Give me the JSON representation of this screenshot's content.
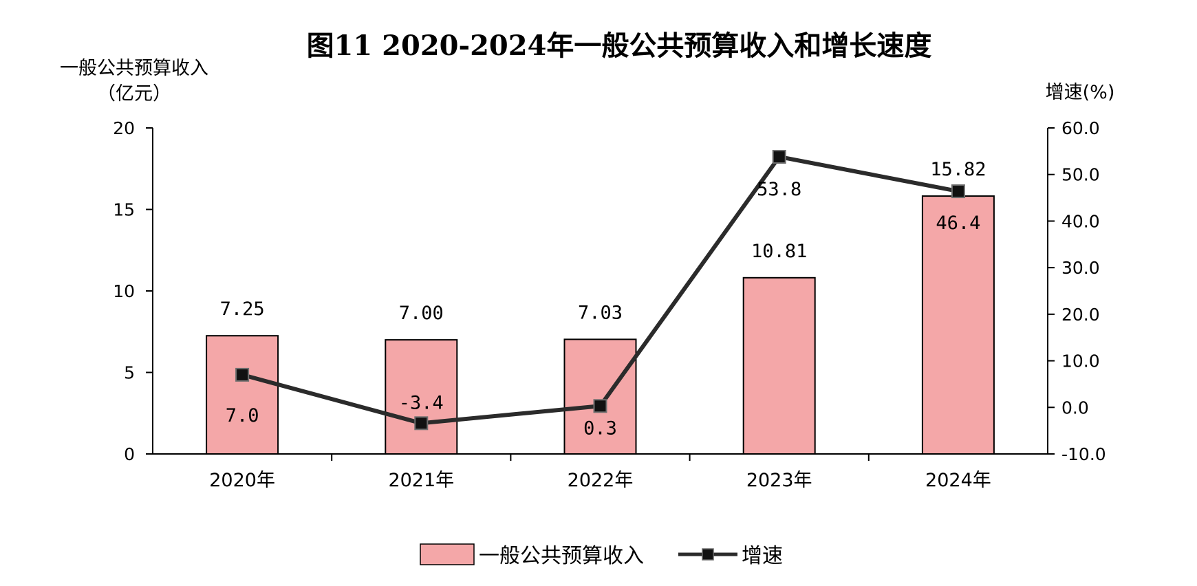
{
  "colors": {
    "bar_fill": "#F4A7A8",
    "bar_stroke": "#000000",
    "line": "#2B2B2B",
    "marker": "#111111",
    "axis": "#000000"
  },
  "chart_data": {
    "type": "bar",
    "title": "图11 2020-2024年一般公共预算收入和增长速度",
    "categories": [
      "2020年",
      "2021年",
      "2022年",
      "2023年",
      "2024年"
    ],
    "y_left": {
      "label_line1": "一般公共预算收入",
      "label_line2": "（亿元）",
      "range": [
        0,
        20
      ],
      "ticks": [
        "0",
        "5",
        "10",
        "15",
        "20"
      ]
    },
    "y_right": {
      "label": "增速(%)",
      "range": [
        -10,
        60
      ],
      "ticks": [
        "-10.0",
        "0.0",
        "10.0",
        "20.0",
        "30.0",
        "40.0",
        "50.0",
        "60.0"
      ]
    },
    "series": [
      {
        "name": "一般公共预算收入",
        "type": "bar",
        "axis": "left",
        "values": [
          7.25,
          7.0,
          7.03,
          10.81,
          15.82
        ],
        "labels": [
          "7.25",
          "7.00",
          "7.03",
          "10.81",
          "15.82"
        ]
      },
      {
        "name": "增速",
        "type": "line",
        "axis": "right",
        "values": [
          7.0,
          -3.4,
          0.3,
          53.8,
          46.4
        ],
        "labels": [
          "7.0",
          "-3.4",
          "0.3",
          "53.8",
          "46.4"
        ]
      }
    ],
    "grid": false,
    "legend_position": "bottom-center"
  }
}
